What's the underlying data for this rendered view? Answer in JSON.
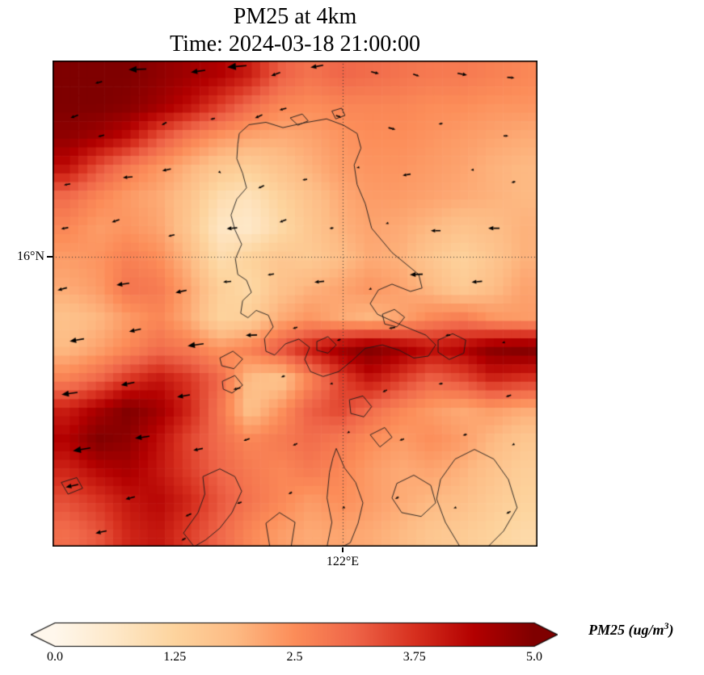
{
  "title": {
    "line1": "PM25 at 4km",
    "line2": "Time: 2024-03-18 21:00:00"
  },
  "axis": {
    "lat_tick_label": "16°N",
    "lon_tick_label": "122°E"
  },
  "colorbar": {
    "label_text": "PM25 (ug/m",
    "label_sup": "3",
    "label_close": ")",
    "tick_labels": [
      "0.0",
      "1.25",
      "2.5",
      "3.75",
      "5.0"
    ]
  },
  "chart_data": {
    "type": "heatmap",
    "title": "PM25 at 4km",
    "subtitle": "Time: 2024-03-18 21:00:00",
    "variable": "PM25",
    "units": "ug/m3",
    "level": "4km",
    "time": "2024-03-18 21:00:00",
    "vmin": 0,
    "vmax": 5,
    "colorbar_ticks": [
      0,
      1.25,
      2.5,
      3.75,
      5
    ],
    "colorbar_extend": "both",
    "colormap_name": "OrRd",
    "colormap_stops": [
      "#fff7ec",
      "#fee8c8",
      "#fdd49e",
      "#fdbb84",
      "#fc8d59",
      "#ef6548",
      "#d7301f",
      "#b30000",
      "#7f0000"
    ],
    "gridlines": {
      "lat_label": "16°N",
      "lat_y_frac": 0.4037,
      "lon_label": "122°E",
      "lon_x_frac": 0.5983,
      "style": "dotted"
    },
    "heatmap": {
      "nx": 16,
      "ny": 16,
      "values": [
        [
          5.0,
          5.0,
          5.0,
          4.8,
          4.6,
          4.4,
          4.0,
          3.2,
          2.9,
          3.1,
          3.0,
          2.9,
          2.8,
          2.8,
          2.7,
          2.6
        ],
        [
          5.0,
          5.0,
          4.9,
          4.6,
          4.2,
          3.6,
          3.0,
          2.6,
          2.5,
          2.6,
          2.6,
          2.6,
          2.5,
          2.5,
          2.4,
          2.4
        ],
        [
          4.8,
          4.6,
          4.2,
          3.4,
          2.8,
          2.4,
          2.2,
          2.1,
          2.2,
          2.4,
          2.5,
          2.5,
          2.4,
          2.3,
          2.2,
          2.1
        ],
        [
          4.2,
          3.4,
          2.8,
          2.4,
          2.0,
          1.6,
          1.4,
          1.7,
          2.0,
          2.3,
          2.4,
          2.4,
          2.3,
          2.2,
          2.0,
          1.9
        ],
        [
          3.0,
          2.6,
          2.3,
          2.1,
          1.7,
          1.0,
          0.8,
          1.3,
          1.7,
          2.1,
          2.3,
          2.3,
          2.2,
          2.1,
          2.0,
          1.9
        ],
        [
          2.6,
          2.3,
          2.4,
          2.2,
          1.6,
          0.7,
          0.6,
          1.1,
          1.6,
          2.0,
          2.2,
          2.1,
          1.9,
          1.7,
          1.8,
          2.0
        ],
        [
          2.3,
          2.4,
          2.7,
          2.5,
          1.9,
          1.0,
          1.3,
          1.6,
          1.5,
          1.8,
          2.1,
          2.0,
          1.6,
          1.3,
          1.6,
          2.0
        ],
        [
          2.1,
          2.3,
          2.9,
          2.8,
          2.2,
          1.4,
          1.1,
          1.7,
          2.0,
          2.2,
          2.4,
          2.2,
          1.9,
          1.5,
          1.8,
          2.2
        ],
        [
          1.7,
          1.9,
          2.3,
          2.6,
          2.1,
          1.3,
          1.4,
          2.1,
          2.4,
          2.1,
          1.9,
          2.2,
          2.6,
          2.8,
          2.4,
          2.3
        ],
        [
          1.9,
          2.2,
          2.6,
          3.0,
          2.8,
          2.4,
          2.7,
          3.3,
          4.0,
          4.6,
          5.0,
          4.6,
          4.2,
          4.4,
          4.9,
          5.0
        ],
        [
          2.7,
          3.1,
          3.7,
          4.1,
          3.7,
          3.1,
          1.8,
          1.6,
          2.6,
          3.5,
          4.1,
          3.6,
          3.1,
          3.4,
          3.9,
          3.7
        ],
        [
          4.0,
          4.5,
          5.0,
          4.6,
          3.9,
          2.9,
          1.7,
          2.4,
          3.2,
          3.5,
          3.0,
          2.6,
          2.3,
          2.1,
          2.3,
          2.1
        ],
        [
          4.4,
          5.0,
          4.8,
          4.2,
          3.5,
          3.0,
          2.6,
          2.8,
          3.0,
          2.8,
          2.5,
          2.3,
          2.5,
          2.3,
          1.9,
          1.6
        ],
        [
          3.9,
          4.3,
          4.5,
          4.1,
          3.6,
          3.1,
          2.8,
          2.6,
          2.8,
          2.6,
          2.3,
          2.1,
          2.2,
          2.0,
          1.7,
          1.4
        ],
        [
          3.4,
          3.7,
          4.1,
          4.3,
          3.9,
          3.3,
          2.9,
          2.6,
          2.3,
          2.5,
          2.3,
          2.1,
          1.9,
          1.8,
          1.5,
          1.3
        ],
        [
          3.0,
          3.3,
          3.9,
          4.1,
          3.6,
          3.1,
          2.6,
          2.3,
          2.1,
          2.2,
          2.1,
          1.9,
          1.6,
          1.5,
          1.3,
          1.1
        ]
      ]
    },
    "coastlines": [
      [
        [
          0.385,
          0.15
        ],
        [
          0.405,
          0.132
        ],
        [
          0.44,
          0.127
        ],
        [
          0.475,
          0.138
        ],
        [
          0.52,
          0.128
        ],
        [
          0.565,
          0.12
        ],
        [
          0.6,
          0.133
        ],
        [
          0.628,
          0.15
        ],
        [
          0.636,
          0.18
        ],
        [
          0.622,
          0.215
        ],
        [
          0.628,
          0.255
        ],
        [
          0.645,
          0.295
        ],
        [
          0.658,
          0.345
        ],
        [
          0.7,
          0.395
        ],
        [
          0.755,
          0.44
        ],
        [
          0.762,
          0.468
        ],
        [
          0.738,
          0.475
        ],
        [
          0.7,
          0.46
        ],
        [
          0.672,
          0.472
        ],
        [
          0.655,
          0.5
        ],
        [
          0.67,
          0.522
        ],
        [
          0.705,
          0.538
        ],
        [
          0.738,
          0.552
        ],
        [
          0.77,
          0.565
        ],
        [
          0.79,
          0.585
        ],
        [
          0.775,
          0.608
        ],
        [
          0.745,
          0.612
        ],
        [
          0.715,
          0.596
        ],
        [
          0.68,
          0.585
        ],
        [
          0.645,
          0.592
        ],
        [
          0.618,
          0.617
        ],
        [
          0.59,
          0.64
        ],
        [
          0.558,
          0.65
        ],
        [
          0.532,
          0.64
        ],
        [
          0.52,
          0.615
        ],
        [
          0.53,
          0.59
        ],
        [
          0.508,
          0.573
        ],
        [
          0.48,
          0.583
        ],
        [
          0.458,
          0.606
        ],
        [
          0.44,
          0.598
        ],
        [
          0.437,
          0.572
        ],
        [
          0.455,
          0.548
        ],
        [
          0.445,
          0.524
        ],
        [
          0.42,
          0.514
        ],
        [
          0.403,
          0.529
        ],
        [
          0.388,
          0.52
        ],
        [
          0.392,
          0.494
        ],
        [
          0.41,
          0.477
        ],
        [
          0.4,
          0.452
        ],
        [
          0.382,
          0.44
        ],
        [
          0.377,
          0.408
        ],
        [
          0.39,
          0.378
        ],
        [
          0.376,
          0.348
        ],
        [
          0.368,
          0.318
        ],
        [
          0.38,
          0.285
        ],
        [
          0.4,
          0.262
        ],
        [
          0.392,
          0.232
        ],
        [
          0.38,
          0.202
        ],
        [
          0.382,
          0.172
        ]
      ],
      [
        [
          0.545,
          0.578
        ],
        [
          0.568,
          0.568
        ],
        [
          0.585,
          0.585
        ],
        [
          0.568,
          0.602
        ],
        [
          0.545,
          0.596
        ]
      ],
      [
        [
          0.795,
          0.575
        ],
        [
          0.825,
          0.562
        ],
        [
          0.852,
          0.575
        ],
        [
          0.848,
          0.602
        ],
        [
          0.818,
          0.615
        ],
        [
          0.795,
          0.6
        ]
      ],
      [
        [
          0.68,
          0.522
        ],
        [
          0.705,
          0.512
        ],
        [
          0.726,
          0.528
        ],
        [
          0.71,
          0.548
        ],
        [
          0.685,
          0.542
        ]
      ],
      [
        [
          0.612,
          0.698
        ],
        [
          0.64,
          0.69
        ],
        [
          0.658,
          0.712
        ],
        [
          0.642,
          0.733
        ],
        [
          0.615,
          0.726
        ]
      ],
      [
        [
          0.345,
          0.612
        ],
        [
          0.372,
          0.598
        ],
        [
          0.392,
          0.614
        ],
        [
          0.374,
          0.634
        ],
        [
          0.349,
          0.628
        ]
      ],
      [
        [
          0.35,
          0.66
        ],
        [
          0.376,
          0.648
        ],
        [
          0.392,
          0.668
        ],
        [
          0.37,
          0.684
        ],
        [
          0.352,
          0.676
        ]
      ],
      [
        [
          0.585,
          0.798
        ],
        [
          0.602,
          0.838
        ],
        [
          0.625,
          0.868
        ],
        [
          0.64,
          0.91
        ],
        [
          0.63,
          0.952
        ],
        [
          0.614,
          0.992
        ],
        [
          0.598,
          1.0
        ],
        [
          0.566,
          1.0
        ],
        [
          0.576,
          0.95
        ],
        [
          0.566,
          0.9
        ],
        [
          0.571,
          0.848
        ],
        [
          0.578,
          0.818
        ]
      ],
      [
        [
          0.8,
          0.862
        ],
        [
          0.83,
          0.82
        ],
        [
          0.87,
          0.8
        ],
        [
          0.91,
          0.82
        ],
        [
          0.94,
          0.862
        ],
        [
          0.958,
          0.92
        ],
        [
          0.93,
          0.968
        ],
        [
          0.898,
          1.0
        ],
        [
          0.84,
          1.0
        ],
        [
          0.81,
          0.95
        ],
        [
          0.792,
          0.902
        ]
      ],
      [
        [
          0.71,
          0.87
        ],
        [
          0.745,
          0.853
        ],
        [
          0.78,
          0.874
        ],
        [
          0.79,
          0.91
        ],
        [
          0.76,
          0.938
        ],
        [
          0.72,
          0.93
        ],
        [
          0.7,
          0.9
        ]
      ],
      [
        [
          0.31,
          0.856
        ],
        [
          0.345,
          0.84
        ],
        [
          0.376,
          0.856
        ],
        [
          0.39,
          0.886
        ],
        [
          0.37,
          0.93
        ],
        [
          0.345,
          0.962
        ],
        [
          0.316,
          0.986
        ],
        [
          0.292,
          1.0
        ],
        [
          0.27,
          0.972
        ],
        [
          0.3,
          0.93
        ],
        [
          0.314,
          0.892
        ]
      ],
      [
        [
          0.49,
          0.118
        ],
        [
          0.515,
          0.11
        ],
        [
          0.527,
          0.124
        ],
        [
          0.506,
          0.133
        ]
      ],
      [
        [
          0.576,
          0.104
        ],
        [
          0.596,
          0.098
        ],
        [
          0.603,
          0.113
        ],
        [
          0.584,
          0.12
        ]
      ],
      [
        [
          0.44,
          0.952
        ],
        [
          0.468,
          0.93
        ],
        [
          0.5,
          0.95
        ],
        [
          0.492,
          1.0
        ],
        [
          0.448,
          1.0
        ]
      ],
      [
        [
          0.018,
          0.868
        ],
        [
          0.05,
          0.858
        ],
        [
          0.062,
          0.88
        ],
        [
          0.032,
          0.892
        ]
      ],
      [
        [
          0.655,
          0.77
        ],
        [
          0.685,
          0.755
        ],
        [
          0.7,
          0.775
        ],
        [
          0.675,
          0.795
        ]
      ]
    ],
    "wind_arrows": [
      [
        0.095,
        0.045,
        165,
        9
      ],
      [
        0.175,
        0.018,
        178,
        22
      ],
      [
        0.3,
        0.022,
        172,
        18
      ],
      [
        0.38,
        0.012,
        175,
        24
      ],
      [
        0.46,
        0.028,
        160,
        12
      ],
      [
        0.545,
        0.012,
        170,
        16
      ],
      [
        0.665,
        0.025,
        15,
        10
      ],
      [
        0.75,
        0.03,
        20,
        8
      ],
      [
        0.845,
        0.028,
        10,
        12
      ],
      [
        0.945,
        0.035,
        5,
        9
      ],
      [
        0.045,
        0.115,
        160,
        10
      ],
      [
        0.1,
        0.155,
        165,
        8
      ],
      [
        0.23,
        0.13,
        150,
        7
      ],
      [
        0.33,
        0.12,
        165,
        6
      ],
      [
        0.425,
        0.115,
        155,
        10
      ],
      [
        0.475,
        0.1,
        165,
        9
      ],
      [
        0.59,
        0.115,
        20,
        7
      ],
      [
        0.7,
        0.14,
        15,
        9
      ],
      [
        0.8,
        0.13,
        170,
        5
      ],
      [
        0.935,
        0.155,
        0,
        6
      ],
      [
        0.03,
        0.255,
        170,
        8
      ],
      [
        0.155,
        0.24,
        175,
        12
      ],
      [
        0.235,
        0.225,
        168,
        11
      ],
      [
        0.345,
        0.23,
        40,
        4
      ],
      [
        0.43,
        0.26,
        155,
        8
      ],
      [
        0.52,
        0.245,
        170,
        6
      ],
      [
        0.63,
        0.22,
        165,
        4
      ],
      [
        0.73,
        0.235,
        170,
        10
      ],
      [
        0.865,
        0.225,
        175,
        3
      ],
      [
        0.95,
        0.25,
        165,
        5
      ],
      [
        0.025,
        0.345,
        170,
        9
      ],
      [
        0.13,
        0.33,
        160,
        10
      ],
      [
        0.245,
        0.36,
        165,
        8
      ],
      [
        0.37,
        0.345,
        175,
        13
      ],
      [
        0.475,
        0.33,
        160,
        9
      ],
      [
        0.575,
        0.345,
        170,
        5
      ],
      [
        0.69,
        0.335,
        160,
        4
      ],
      [
        0.79,
        0.35,
        180,
        12
      ],
      [
        0.91,
        0.345,
        180,
        14
      ],
      [
        0.02,
        0.47,
        165,
        12
      ],
      [
        0.145,
        0.46,
        172,
        16
      ],
      [
        0.265,
        0.475,
        168,
        14
      ],
      [
        0.36,
        0.455,
        175,
        10
      ],
      [
        0.45,
        0.44,
        170,
        8
      ],
      [
        0.55,
        0.455,
        175,
        12
      ],
      [
        0.655,
        0.47,
        150,
        4
      ],
      [
        0.75,
        0.44,
        178,
        16
      ],
      [
        0.875,
        0.455,
        175,
        13
      ],
      [
        0.05,
        0.575,
        170,
        18
      ],
      [
        0.17,
        0.555,
        168,
        15
      ],
      [
        0.295,
        0.585,
        172,
        20
      ],
      [
        0.41,
        0.565,
        178,
        14
      ],
      [
        0.5,
        0.55,
        165,
        6
      ],
      [
        0.59,
        0.575,
        160,
        5
      ],
      [
        0.7,
        0.55,
        170,
        8
      ],
      [
        0.815,
        0.565,
        175,
        6
      ],
      [
        0.93,
        0.58,
        165,
        4
      ],
      [
        0.035,
        0.685,
        172,
        20
      ],
      [
        0.155,
        0.665,
        168,
        17
      ],
      [
        0.27,
        0.69,
        170,
        16
      ],
      [
        0.38,
        0.675,
        165,
        9
      ],
      [
        0.475,
        0.65,
        160,
        5
      ],
      [
        0.575,
        0.665,
        165,
        4
      ],
      [
        0.685,
        0.68,
        155,
        6
      ],
      [
        0.8,
        0.665,
        170,
        5
      ],
      [
        0.94,
        0.69,
        160,
        7
      ],
      [
        0.06,
        0.8,
        170,
        22
      ],
      [
        0.185,
        0.775,
        172,
        18
      ],
      [
        0.3,
        0.8,
        168,
        12
      ],
      [
        0.4,
        0.78,
        160,
        8
      ],
      [
        0.5,
        0.79,
        155,
        6
      ],
      [
        0.61,
        0.765,
        150,
        4
      ],
      [
        0.72,
        0.78,
        160,
        6
      ],
      [
        0.85,
        0.77,
        165,
        5
      ],
      [
        0.95,
        0.79,
        155,
        4
      ],
      [
        0.04,
        0.875,
        168,
        16
      ],
      [
        0.16,
        0.9,
        165,
        12
      ],
      [
        0.28,
        0.935,
        155,
        8
      ],
      [
        0.385,
        0.91,
        160,
        6
      ],
      [
        0.49,
        0.89,
        150,
        5
      ],
      [
        0.6,
        0.92,
        155,
        4
      ],
      [
        0.71,
        0.9,
        150,
        5
      ],
      [
        0.83,
        0.92,
        160,
        4
      ],
      [
        0.94,
        0.93,
        150,
        6
      ],
      [
        0.1,
        0.97,
        168,
        14
      ],
      [
        0.27,
        0.985,
        150,
        6
      ]
    ]
  }
}
